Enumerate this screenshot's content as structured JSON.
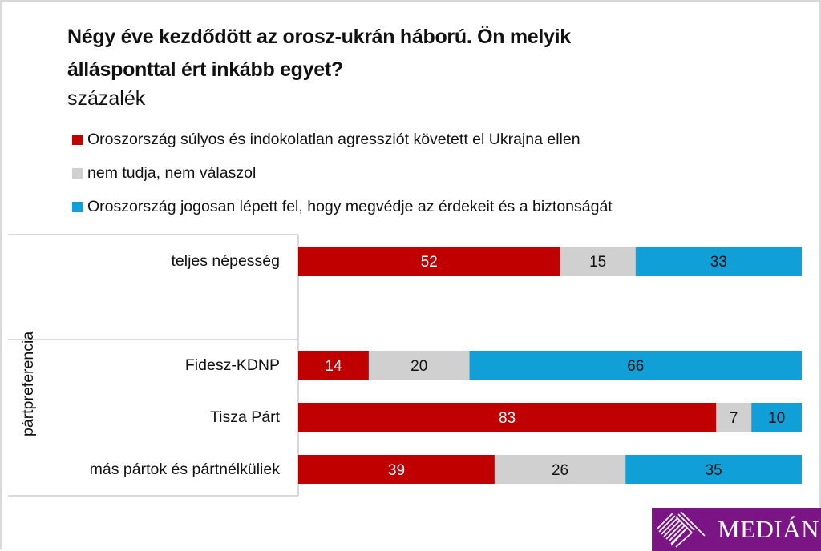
{
  "chart_data": {
    "type": "bar",
    "orientation": "horizontal",
    "stacked": true,
    "title": "Négy éve kezdődött az orosz-ukrán háború. Ön melyik álláspontal ért inkább egyet?",
    "title_lines": [
      "Négy éve kezdődött az orosz-ukrán háború. Ön melyik",
      "állásponttal ért inkább egyet?"
    ],
    "subtitle": "százalék",
    "xlabel": "",
    "ylabel": "",
    "xlim": [
      0,
      100
    ],
    "grid": false,
    "legend_position": "top-left",
    "categories": [
      "teljes népesség",
      "Fidesz-KDNP",
      "Tisza Párt",
      "más pártok és pártnélküliek"
    ],
    "category_group": {
      "label": "pártpreferencia",
      "members": [
        "Fidesz-KDNP",
        "Tisza Párt",
        "más pártok és pártnélküliek"
      ]
    },
    "series": [
      {
        "name": "Oroszország súlyos és indokolatlan agressziót követett el Ukrajna ellen",
        "color": "#c00000",
        "label_color": "#ffffff",
        "values": [
          52,
          14,
          83,
          39
        ]
      },
      {
        "name": "nem tudja, nem válaszol",
        "color": "#d0d0d0",
        "label_color": "#111111",
        "values": [
          15,
          20,
          7,
          26
        ]
      },
      {
        "name": "Oroszország jogosan lépett fel, hogy megvédje az érdekeit és a biztonságát",
        "color": "#119fd7",
        "label_color": "#111111",
        "values": [
          33,
          66,
          10,
          35
        ]
      }
    ]
  },
  "logo": {
    "text": "MEDIÁN",
    "color": "#7b1585"
  }
}
